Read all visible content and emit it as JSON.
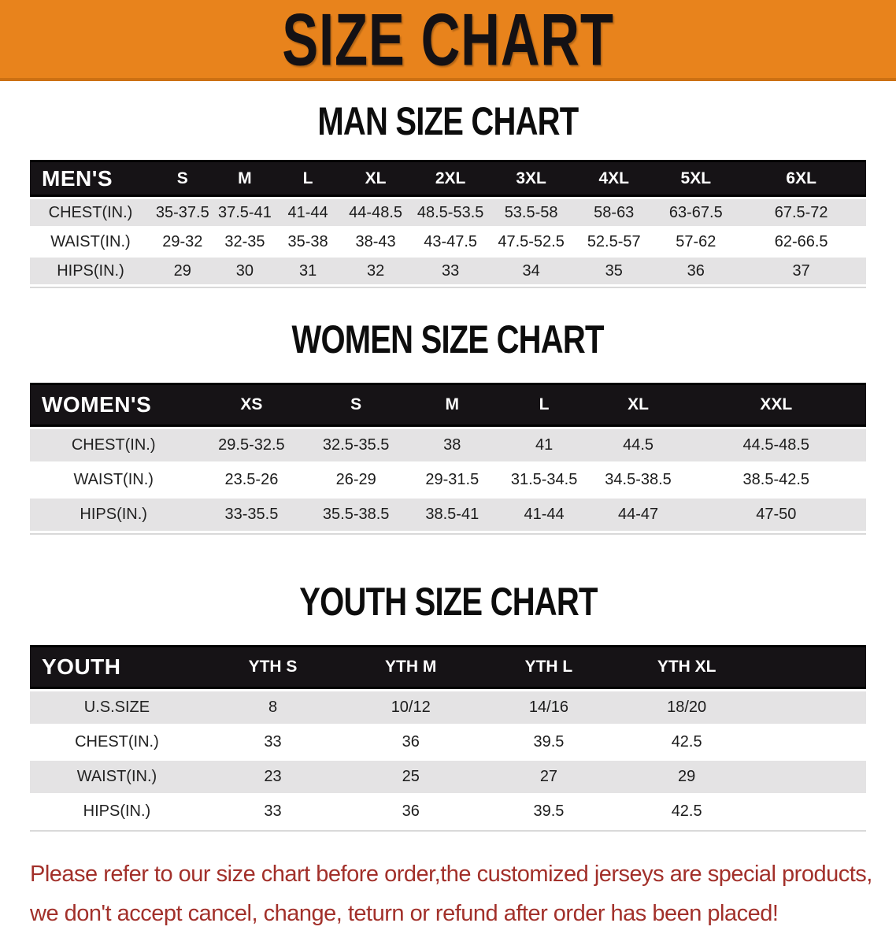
{
  "banner": {
    "title": "SIZE CHART",
    "bg_color": "#e8831c",
    "text_color": "#141114"
  },
  "colors": {
    "table_header_bg": "#161316",
    "row_stripe": "#e4e3e4",
    "disclaimer_red": "#a2302a"
  },
  "sections": [
    {
      "heading": "MAN SIZE CHART",
      "table": {
        "header_label": "MEN'S",
        "sizes": [
          "S",
          "M",
          "L",
          "XL",
          "2XL",
          "3XL",
          "4XL",
          "5XL",
          "6XL"
        ],
        "rows": [
          {
            "label": "CHEST(IN.)",
            "values": [
              "35-37.5",
              "37.5-41",
              "41-44",
              "44-48.5",
              "48.5-53.5",
              "53.5-58",
              "58-63",
              "63-67.5",
              "67.5-72"
            ]
          },
          {
            "label": "WAIST(IN.)",
            "values": [
              "29-32",
              "32-35",
              "35-38",
              "38-43",
              "43-47.5",
              "47.5-52.5",
              "52.5-57",
              "57-62",
              "62-66.5"
            ]
          },
          {
            "label": "HIPS(IN.)",
            "values": [
              "29",
              "30",
              "31",
              "32",
              "33",
              "34",
              "35",
              "36",
              "37"
            ]
          }
        ]
      }
    },
    {
      "heading": "WOMEN SIZE CHART",
      "table": {
        "header_label": "WOMEN'S",
        "sizes": [
          "XS",
          "S",
          "M",
          "L",
          "XL",
          "XXL"
        ],
        "rows": [
          {
            "label": "CHEST(IN.)",
            "values": [
              "29.5-32.5",
              "32.5-35.5",
              "38",
              "41",
              "44.5",
              "44.5-48.5"
            ]
          },
          {
            "label": "WAIST(IN.)",
            "values": [
              "23.5-26",
              "26-29",
              "29-31.5",
              "31.5-34.5",
              "34.5-38.5",
              "38.5-42.5"
            ]
          },
          {
            "label": "HIPS(IN.)",
            "values": [
              "33-35.5",
              "35.5-38.5",
              "38.5-41",
              "41-44",
              "44-47",
              "47-50"
            ]
          }
        ]
      }
    },
    {
      "heading": "YOUTH SIZE CHART",
      "table": {
        "header_label": "YOUTH",
        "sizes": [
          "YTH S",
          "YTH M",
          "YTH L",
          "YTH XL"
        ],
        "rows": [
          {
            "label": "U.S.SIZE",
            "values": [
              "8",
              "10/12",
              "14/16",
              "18/20"
            ]
          },
          {
            "label": "CHEST(IN.)",
            "values": [
              "33",
              "36",
              "39.5",
              "42.5"
            ]
          },
          {
            "label": "WAIST(IN.)",
            "values": [
              "23",
              "25",
              "27",
              "29"
            ]
          },
          {
            "label": "HIPS(IN.)",
            "values": [
              "33",
              "36",
              "39.5",
              "42.5"
            ]
          }
        ]
      }
    }
  ],
  "disclaimer": {
    "line1": "Please refer to our size chart before order,the customized jerseys are special products,",
    "line2": "we don't accept cancel, change, teturn or refund after order has been placed!"
  }
}
